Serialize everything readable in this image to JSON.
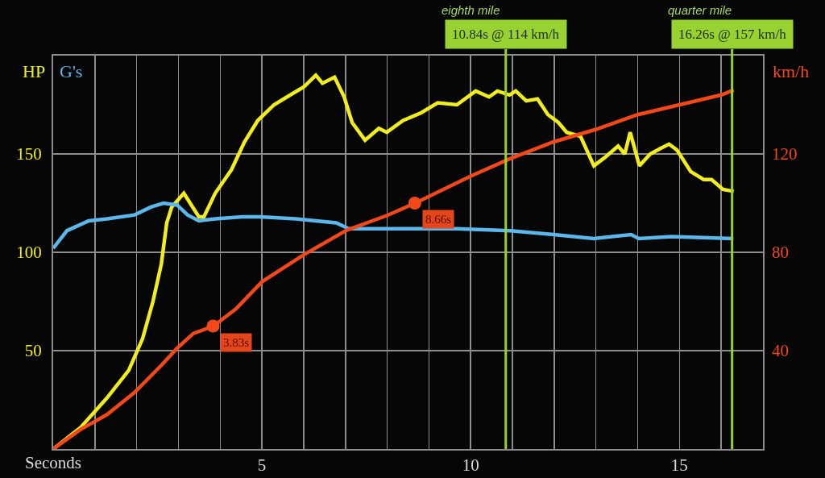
{
  "chart_data": {
    "type": "line",
    "xlabel": "Seconds",
    "xlim": [
      0,
      17
    ],
    "xticks": [
      {
        "value": 1,
        "label": null
      },
      {
        "value": 2,
        "label": null
      },
      {
        "value": 3,
        "label": null
      },
      {
        "value": 4,
        "label": null
      },
      5,
      {
        "value": 6,
        "label": null
      },
      {
        "value": 7,
        "label": null
      },
      {
        "value": 8,
        "label": null
      },
      {
        "value": 9,
        "label": null
      },
      10,
      {
        "value": 11,
        "label": null
      },
      {
        "value": 12,
        "label": null
      },
      {
        "value": 13,
        "label": null
      },
      {
        "value": 14,
        "label": null
      },
      15,
      {
        "value": 16,
        "label": null
      }
    ],
    "ylim": [
      0,
      200
    ],
    "yticks": [
      50,
      100,
      150
    ],
    "y2lim": [
      0,
      160
    ],
    "y2ticks": [
      40,
      80,
      120
    ],
    "grid": true,
    "series": [
      {
        "name": "HP",
        "color": "#f2ee1e",
        "axis": "y",
        "x": [
          0,
          0.66,
          1.29,
          1.81,
          2.14,
          2.39,
          2.59,
          2.72,
          2.84,
          3.13,
          3.49,
          3.61,
          3.88,
          4.27,
          4.58,
          4.9,
          5.29,
          5.68,
          6,
          6.29,
          6.45,
          6.74,
          6.97,
          7.16,
          7.47,
          7.8,
          7.99,
          8.38,
          8.82,
          9.21,
          9.67,
          10.12,
          10.44,
          10.64,
          10.93,
          11.08,
          11.33,
          11.6,
          11.85,
          12.1,
          12.3,
          12.63,
          12.95,
          13.2,
          13.53,
          13.69,
          13.82,
          14.04,
          14.3,
          14.56,
          14.75,
          14.94,
          15.27,
          15.58,
          15.77,
          16.04,
          16.3
        ],
        "values": [
          0,
          11,
          26,
          40,
          56,
          75,
          94,
          115,
          123,
          130,
          118,
          118,
          130,
          142,
          156,
          167,
          175,
          180,
          184,
          190,
          186,
          189,
          179,
          166,
          157,
          163,
          161,
          167,
          171,
          176,
          175,
          182,
          179,
          182,
          180,
          182,
          177,
          178,
          170,
          166,
          161,
          159,
          144,
          148,
          154,
          150,
          161,
          144,
          150,
          153,
          155,
          152,
          141,
          137,
          137,
          132,
          131
        ]
      },
      {
        "name": "G's",
        "color": "#5ab8ec",
        "axis": "y",
        "x": [
          0,
          0.33,
          0.85,
          1.29,
          1.95,
          2.34,
          2.64,
          2.97,
          3.22,
          3.49,
          3.88,
          4.52,
          4.96,
          5.81,
          6.78,
          7.08,
          8.38,
          9.67,
          10.95,
          11.99,
          12.95,
          13.84,
          14.03,
          14.81,
          16.29
        ],
        "values": [
          102,
          111,
          116,
          117,
          119,
          123,
          125,
          124,
          119,
          116,
          117,
          118,
          118,
          117,
          115,
          112,
          112,
          112,
          111,
          109,
          107,
          109,
          107,
          108,
          107
        ]
      },
      {
        "name": "km/h",
        "color": "#f2481a",
        "axis": "y2",
        "x": [
          0,
          0.66,
          1.29,
          1.95,
          2.59,
          2.97,
          3.36,
          3.84,
          4.38,
          5,
          6,
          7.03,
          8,
          8.67,
          10,
          10.93,
          12,
          13,
          14,
          15,
          16,
          16.3
        ],
        "values": [
          0,
          8,
          14,
          23,
          34,
          41,
          47,
          50,
          57,
          68,
          79,
          89,
          95,
          100,
          111,
          118,
          125,
          130,
          136,
          140,
          144,
          146
        ]
      },
      {
        "type": "scatter",
        "color": "#f2481a",
        "axis": "y2",
        "marker": "circle",
        "x": [
          3.83,
          8.66
        ],
        "values": [
          50,
          100
        ]
      }
    ],
    "ref_lines": [
      {
        "axis": "x",
        "value": 10.84,
        "label": "10.84s @ 114 km/h",
        "color": "#97d232"
      },
      {
        "axis": "x",
        "value": 16.26,
        "label": "16.26s @ 157 km/h",
        "color": "#97d232"
      }
    ],
    "annotations": [
      "eighth mile",
      "quarter mile",
      {
        "text": "3.83s",
        "x": 3.83,
        "y": 62.5
      },
      {
        "text": "8.66s",
        "x": 8.66,
        "y": 125
      }
    ]
  }
}
